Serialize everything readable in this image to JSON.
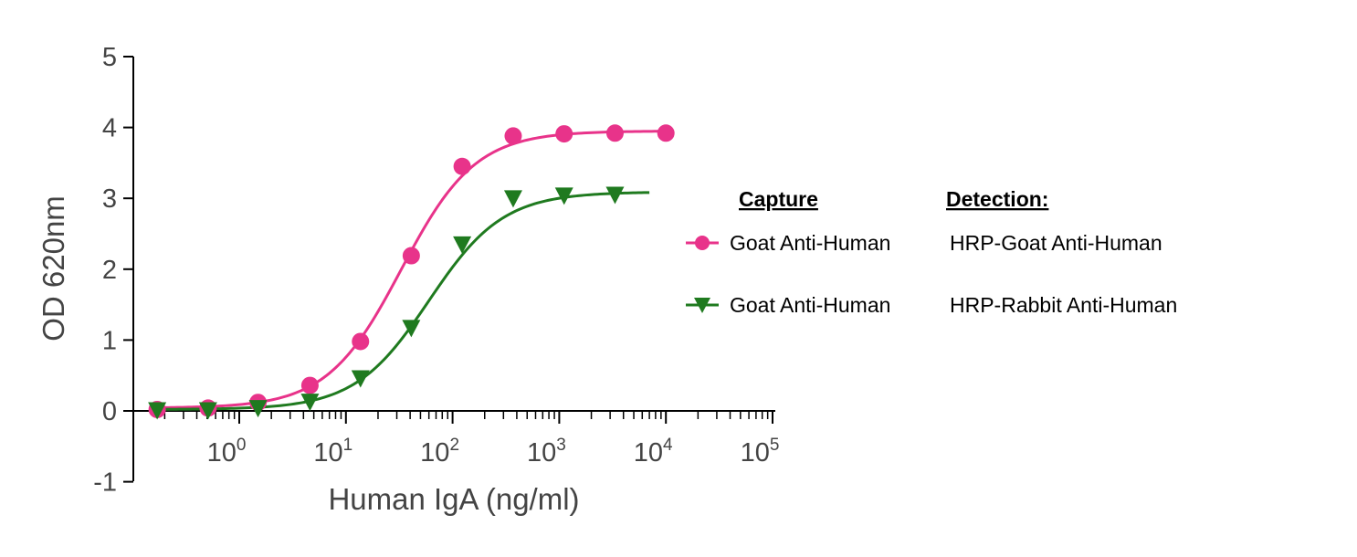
{
  "chart_data": {
    "type": "line",
    "xlabel": "Human IgA (ng/ml)",
    "ylabel": "OD 620nm",
    "x_scale": "log",
    "xlim": [
      0.1,
      100000
    ],
    "ylim": [
      -1,
      5
    ],
    "x_ticks": [
      {
        "value": 1,
        "base": "10",
        "exp": "0"
      },
      {
        "value": 10,
        "base": "10",
        "exp": "1"
      },
      {
        "value": 100,
        "base": "10",
        "exp": "2"
      },
      {
        "value": 1000,
        "base": "10",
        "exp": "3"
      },
      {
        "value": 10000,
        "base": "10",
        "exp": "4"
      },
      {
        "value": 100000,
        "base": "10",
        "exp": "5"
      }
    ],
    "y_ticks": [
      {
        "value": -1,
        "label": "-1"
      },
      {
        "value": 0,
        "label": "0"
      },
      {
        "value": 1,
        "label": "1"
      },
      {
        "value": 2,
        "label": "2"
      },
      {
        "value": 3,
        "label": "3"
      },
      {
        "value": 4,
        "label": "4"
      },
      {
        "value": 5,
        "label": "5"
      }
    ],
    "grid": false,
    "legend": {
      "placement": "right",
      "header_capture": "Capture",
      "header_detection": "Detection:"
    },
    "series": [
      {
        "capture": "Goat Anti-Human",
        "detection": "HRP-Goat Anti-Human",
        "color": "#e8338a",
        "marker": "circle",
        "x": [
          0.17,
          0.51,
          1.5,
          4.6,
          13.7,
          41,
          123,
          370,
          1111,
          3333,
          10000
        ],
        "y": [
          0.02,
          0.04,
          0.12,
          0.36,
          0.98,
          2.19,
          3.45,
          3.88,
          3.91,
          3.92,
          3.92
        ],
        "fit": {
          "bottom": 0.04,
          "top": 3.95,
          "ec50": 33,
          "hill": 1.25,
          "x_range": [
            0.17,
            10000
          ]
        }
      },
      {
        "capture": "Goat Anti-Human",
        "detection": "HRP-Rabbit Anti-Human",
        "color": "#1f7a1f",
        "marker": "triangle-down",
        "x": [
          0.17,
          0.51,
          1.5,
          4.6,
          13.7,
          41,
          123,
          370,
          1111,
          3333
        ],
        "y": [
          0.02,
          0.02,
          0.05,
          0.14,
          0.47,
          1.18,
          2.36,
          3.01,
          3.05,
          3.06
        ],
        "fit": {
          "bottom": 0.02,
          "top": 3.09,
          "ec50": 60,
          "hill": 1.25,
          "x_range": [
            0.17,
            7000
          ]
        }
      }
    ]
  }
}
